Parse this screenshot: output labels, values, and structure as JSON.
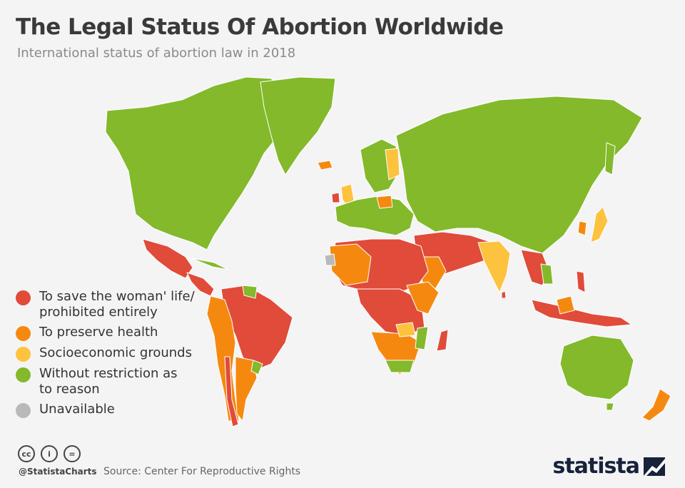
{
  "header": {
    "title": "The Legal Status Of Abortion Worldwide",
    "subtitle": "International status of abortion law in 2018"
  },
  "legend": [
    {
      "label": "To save the woman' life/\nprohibited entirely",
      "color": "#e04b3a"
    },
    {
      "label": "To preserve health",
      "color": "#f5890f"
    },
    {
      "label": "Socioeconomic grounds",
      "color": "#fdc23e"
    },
    {
      "label": "Without restriction as\nto reason",
      "color": "#83b92b"
    },
    {
      "label": "Unavailable",
      "color": "#b9b9b9"
    }
  ],
  "footer": {
    "icons": [
      "cc-license-icon",
      "attribution-icon",
      "no-derivatives-icon"
    ],
    "icon_glyphs": [
      "cc",
      "i",
      "="
    ],
    "handle": "@StatistaCharts",
    "source": "Source: Center For Reproductive Rights",
    "brand": "statista"
  },
  "colors": {
    "ocean": "#f4f4f4",
    "border": "#ffffff",
    "brand": "#17223b"
  }
}
